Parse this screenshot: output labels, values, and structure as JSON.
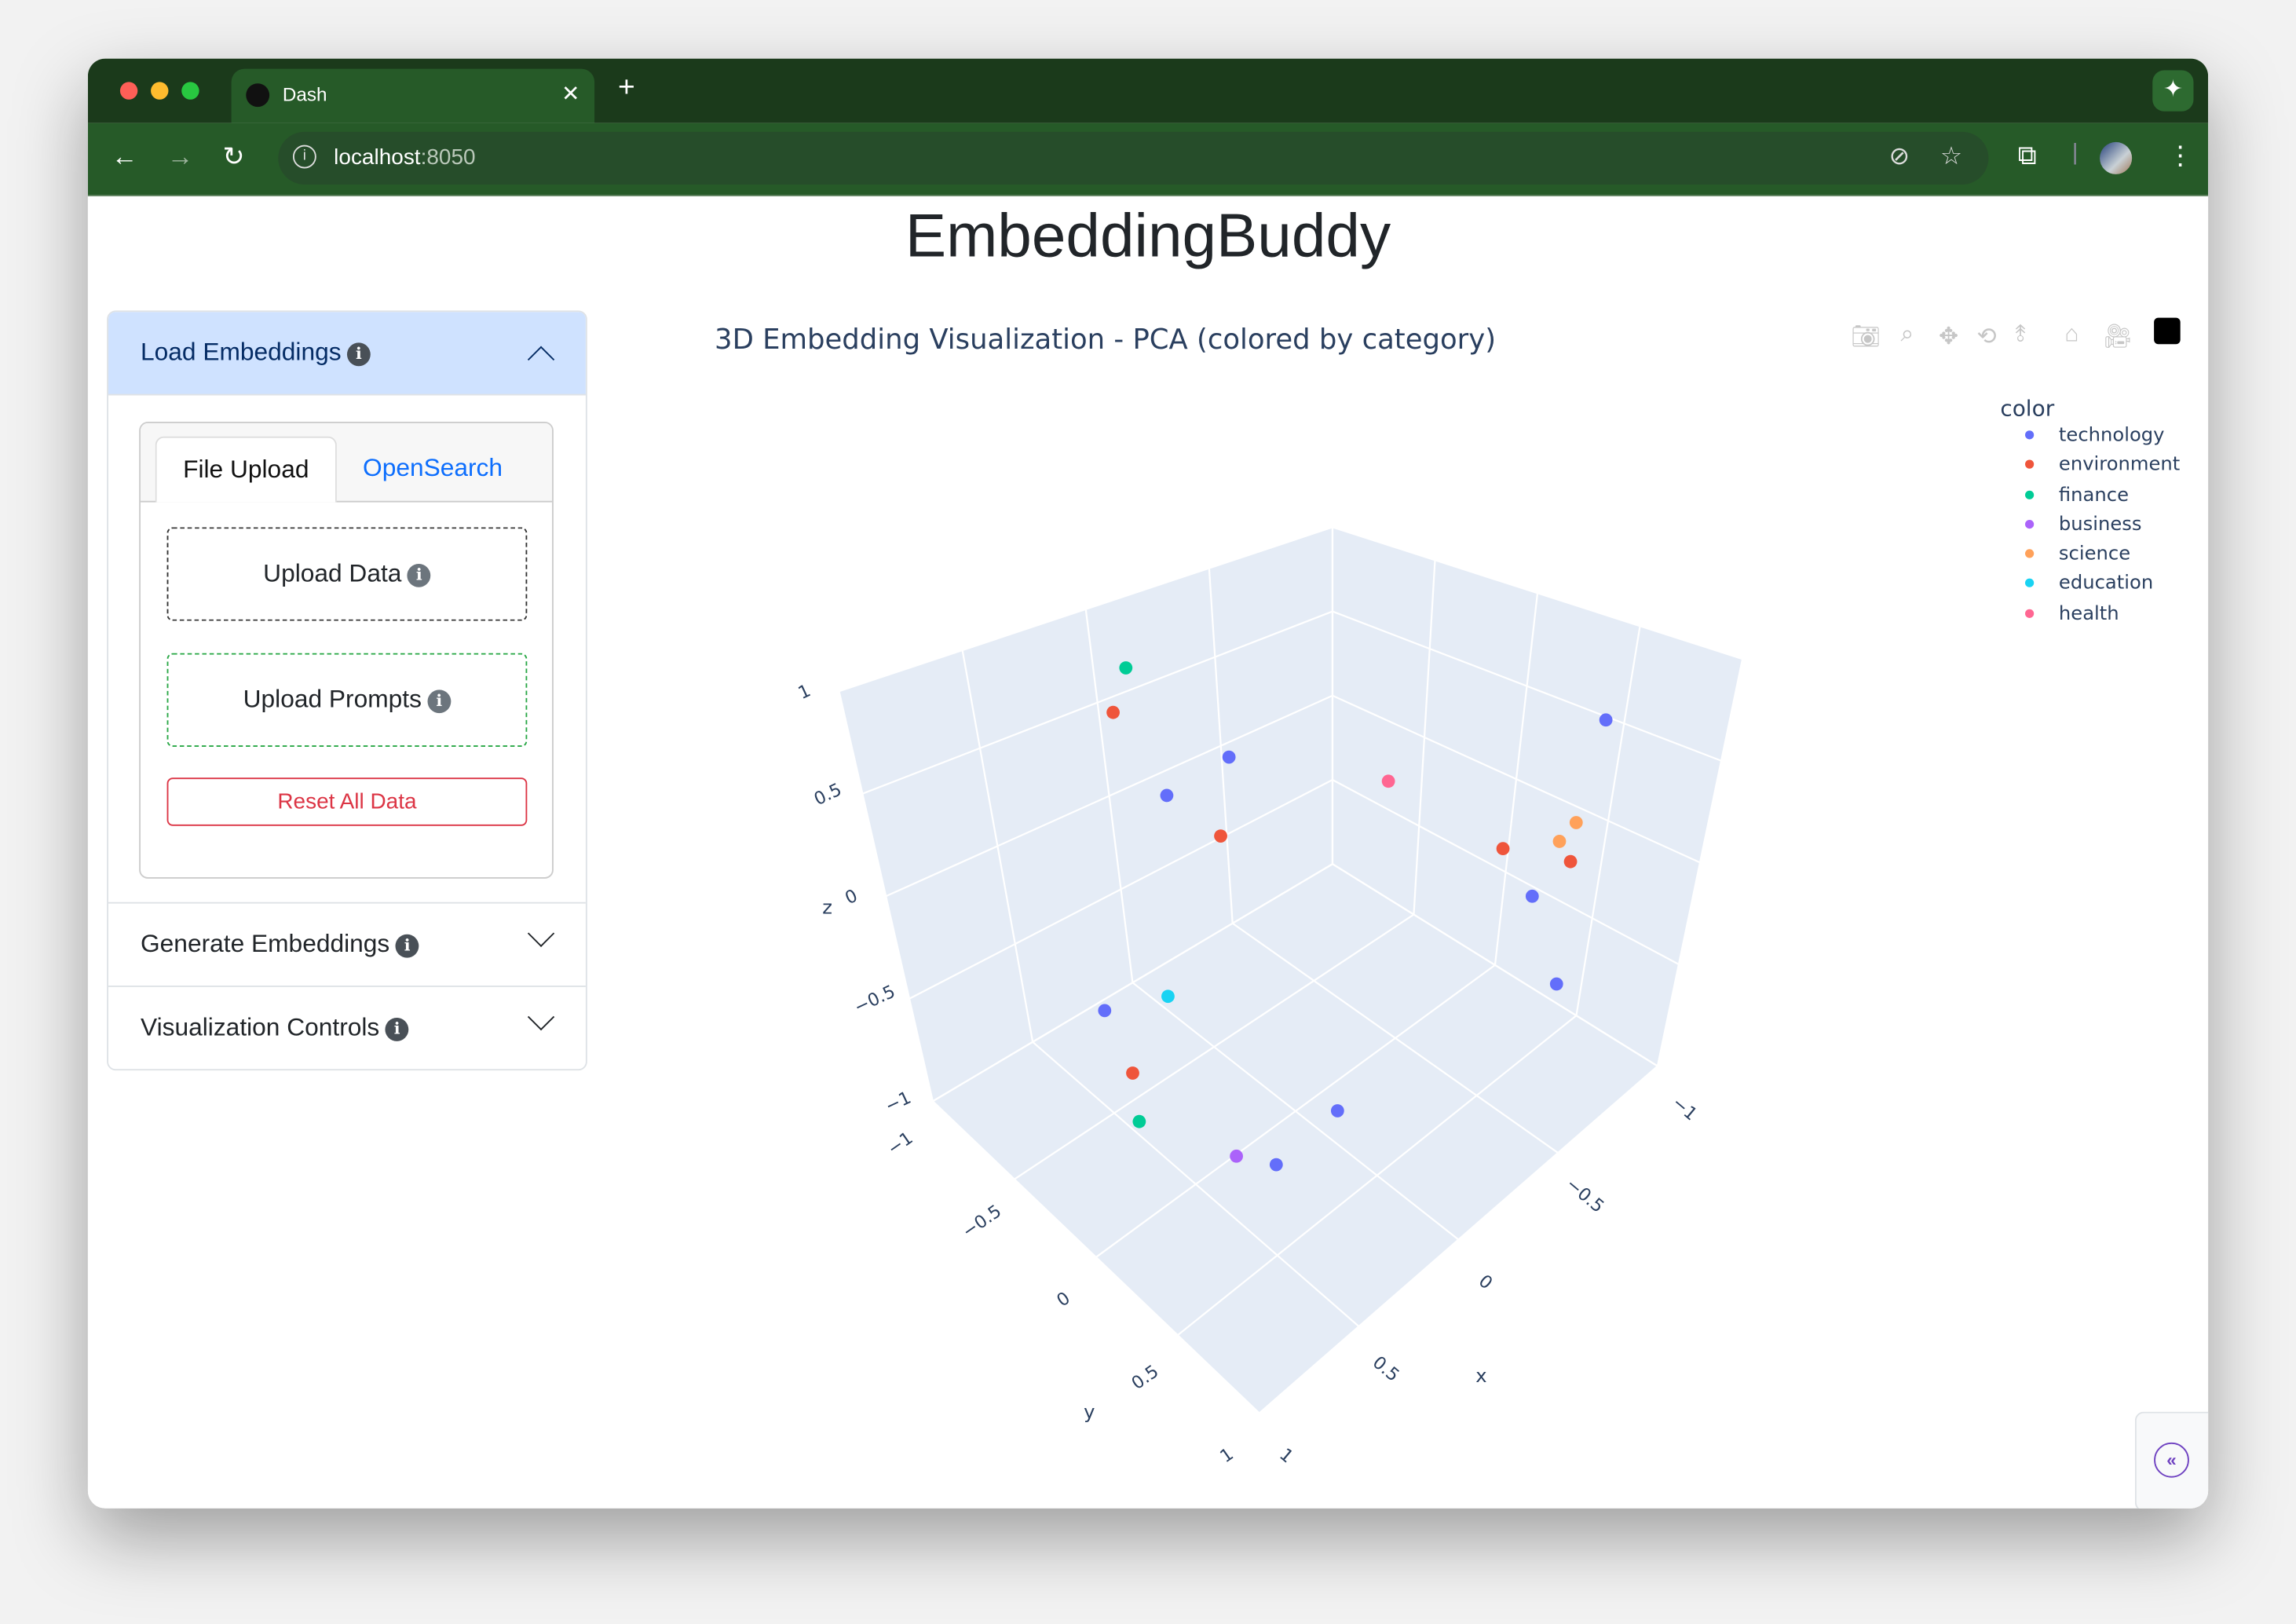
{
  "browser": {
    "tab_title": "Dash",
    "url_host": "localhost",
    "url_port": ":8050",
    "icons": [
      "back-icon",
      "forward-icon",
      "reload-icon",
      "site-info-icon",
      "eye-off-icon",
      "star-icon",
      "search-tab-icon",
      "menu-icon",
      "gemini-icon"
    ]
  },
  "app": {
    "title": "EmbeddingBuddy"
  },
  "sidebar": {
    "load": {
      "label": "Load Embeddings",
      "expanded": true
    },
    "tabs": [
      {
        "label": "File Upload",
        "active": true
      },
      {
        "label": "OpenSearch",
        "active": false
      }
    ],
    "upload_data": "Upload Data",
    "upload_prompts": "Upload Prompts",
    "reset": "Reset All Data",
    "generate": {
      "label": "Generate Embeddings",
      "expanded": false
    },
    "viz": {
      "label": "Visualization Controls",
      "expanded": false
    },
    "info_glyph": "i"
  },
  "plot": {
    "modebar": [
      "camera-icon",
      "zoom-icon",
      "pan-icon",
      "orbit-icon",
      "turntable-icon",
      "home-icon",
      "camera-view-icon",
      "plotly-logo"
    ]
  },
  "chart_data": {
    "type": "scatter3d",
    "title": "3D Embedding Visualization - PCA (colored by category)",
    "legend_title": "color",
    "legend_position": "top-right",
    "xlabel": "x",
    "ylabel": "y",
    "zlabel": "z",
    "xlim": [
      -1,
      1
    ],
    "ylim": [
      -1,
      1
    ],
    "zlim": [
      -1,
      1
    ],
    "ticks": [
      "−1",
      "−0.5",
      "0",
      "0.5",
      "1"
    ],
    "grid": true,
    "categories": [
      {
        "name": "technology",
        "color": "#636efa"
      },
      {
        "name": "environment",
        "color": "#EF553B"
      },
      {
        "name": "finance",
        "color": "#00cc96"
      },
      {
        "name": "business",
        "color": "#ab63fa"
      },
      {
        "name": "science",
        "color": "#FFA15A"
      },
      {
        "name": "education",
        "color": "#19d3f3"
      },
      {
        "name": "health",
        "color": "#FF6692"
      }
    ],
    "points": [
      {
        "category": "finance",
        "x": 0.02,
        "y": -0.8,
        "z": 0.82
      },
      {
        "category": "environment",
        "x": 0.09,
        "y": -0.8,
        "z": 0.62
      },
      {
        "category": "technology",
        "x": -0.14,
        "y": -0.5,
        "z": 0.44
      },
      {
        "category": "technology",
        "x": 0.13,
        "y": -0.5,
        "z": 0.4
      },
      {
        "category": "environment",
        "x": 0.07,
        "y": -0.3,
        "z": 0.28
      },
      {
        "category": "health",
        "x": -0.67,
        "y": -0.3,
        "z": 0.08
      },
      {
        "category": "technology",
        "x": -0.91,
        "y": 0.5,
        "z": 0.59
      },
      {
        "category": "environment",
        "x": -0.69,
        "y": 0.3,
        "z": 0.01
      },
      {
        "category": "science",
        "x": -0.77,
        "y": 0.5,
        "z": 0.08
      },
      {
        "category": "science",
        "x": -0.84,
        "y": 0.5,
        "z": 0.12
      },
      {
        "category": "environment",
        "x": -0.84,
        "y": 0.5,
        "z": -0.08
      },
      {
        "category": "technology",
        "x": -0.67,
        "y": 0.5,
        "z": -0.12
      },
      {
        "category": "technology",
        "x": -0.76,
        "y": 0.6,
        "z": -0.59
      },
      {
        "category": "education",
        "x": 0.57,
        "y": 0.0,
        "z": 0.0
      },
      {
        "category": "technology",
        "x": 0.7,
        "y": -0.2,
        "z": -0.13
      },
      {
        "category": "environment",
        "x": 0.75,
        "y": 0.0,
        "z": -0.26
      },
      {
        "category": "finance",
        "x": 0.74,
        "y": 0.0,
        "z": -0.51
      },
      {
        "category": "business",
        "x": 0.53,
        "y": 0.3,
        "z": -0.62
      },
      {
        "category": "technology",
        "x": 0.34,
        "y": 0.3,
        "z": -0.81
      },
      {
        "category": "technology",
        "x": 0.04,
        "y": 0.3,
        "z": -0.77
      }
    ]
  }
}
